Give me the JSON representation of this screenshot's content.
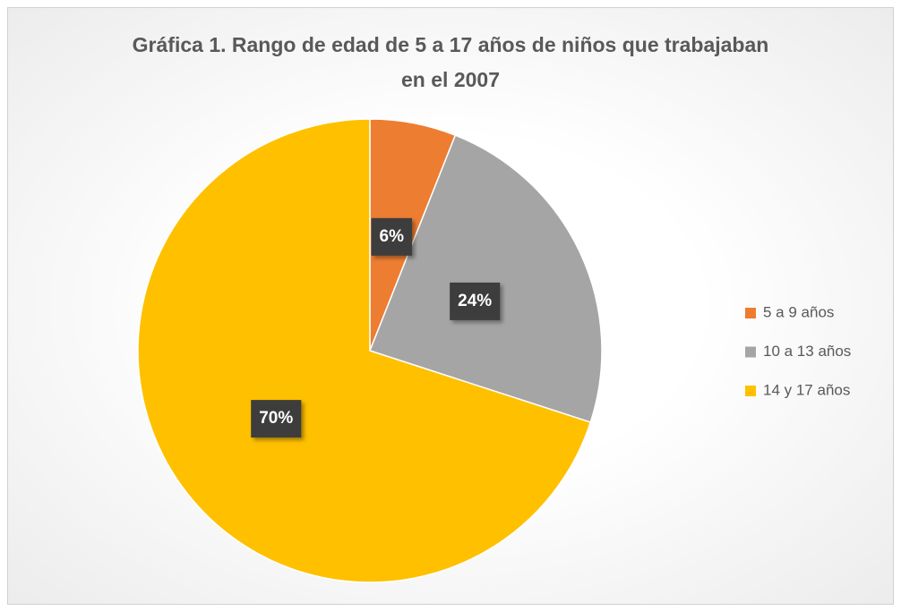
{
  "chart_data": {
    "type": "pie",
    "title": "Gráfica 1. Rango de edad de 5 a 17 años de niños que trabajaban en el 2007",
    "categories": [
      "5 a 9 años",
      "10 a 13 años",
      "14 y 17 años"
    ],
    "values": [
      6,
      24,
      70
    ],
    "value_labels": [
      "6%",
      "24%",
      "70%"
    ],
    "colors": [
      "#ed7d31",
      "#a5a5a5",
      "#ffc000"
    ],
    "legend": "right"
  }
}
